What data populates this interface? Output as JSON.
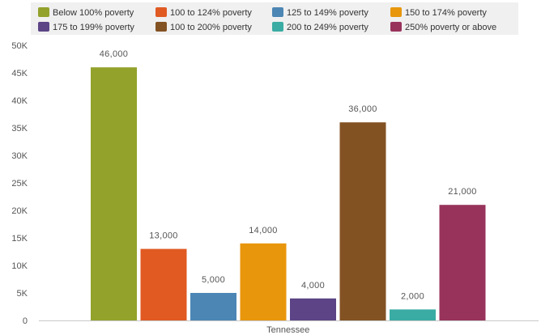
{
  "chart_data": {
    "type": "bar",
    "categories": [
      "Tennessee"
    ],
    "series": [
      {
        "name": "Below 100% poverty",
        "values": [
          46000
        ],
        "color": "#93a22b",
        "label": "46,000"
      },
      {
        "name": "100 to 124% poverty",
        "values": [
          13000
        ],
        "color": "#e05a22",
        "label": "13,000"
      },
      {
        "name": "125 to 149% poverty",
        "values": [
          5000
        ],
        "color": "#4c86b4",
        "label": "5,000"
      },
      {
        "name": "150 to 174% poverty",
        "values": [
          14000
        ],
        "color": "#e8960c",
        "label": "14,000"
      },
      {
        "name": "175 to 199% poverty",
        "values": [
          4000
        ],
        "color": "#5c4486",
        "label": "4,000"
      },
      {
        "name": "100 to 200% poverty",
        "values": [
          36000
        ],
        "color": "#835223",
        "label": "36,000"
      },
      {
        "name": "200 to 249% poverty",
        "values": [
          2000
        ],
        "color": "#3aaca3",
        "label": "2,000"
      },
      {
        "name": "250% poverty or above",
        "values": [
          21000
        ],
        "color": "#98335b",
        "label": "21,000"
      }
    ],
    "ylim": [
      0,
      50000
    ],
    "yticks": [
      {
        "value": 0,
        "label": "0"
      },
      {
        "value": 5000,
        "label": "5K"
      },
      {
        "value": 10000,
        "label": "10K"
      },
      {
        "value": 15000,
        "label": "15K"
      },
      {
        "value": 20000,
        "label": "20K"
      },
      {
        "value": 25000,
        "label": "25K"
      },
      {
        "value": 30000,
        "label": "30K"
      },
      {
        "value": 35000,
        "label": "35K"
      },
      {
        "value": 40000,
        "label": "40K"
      },
      {
        "value": 45000,
        "label": "45K"
      },
      {
        "value": 50000,
        "label": "50K"
      }
    ],
    "legend_position": "top",
    "grid": false,
    "xlabel": "",
    "ylabel": "",
    "title": ""
  }
}
